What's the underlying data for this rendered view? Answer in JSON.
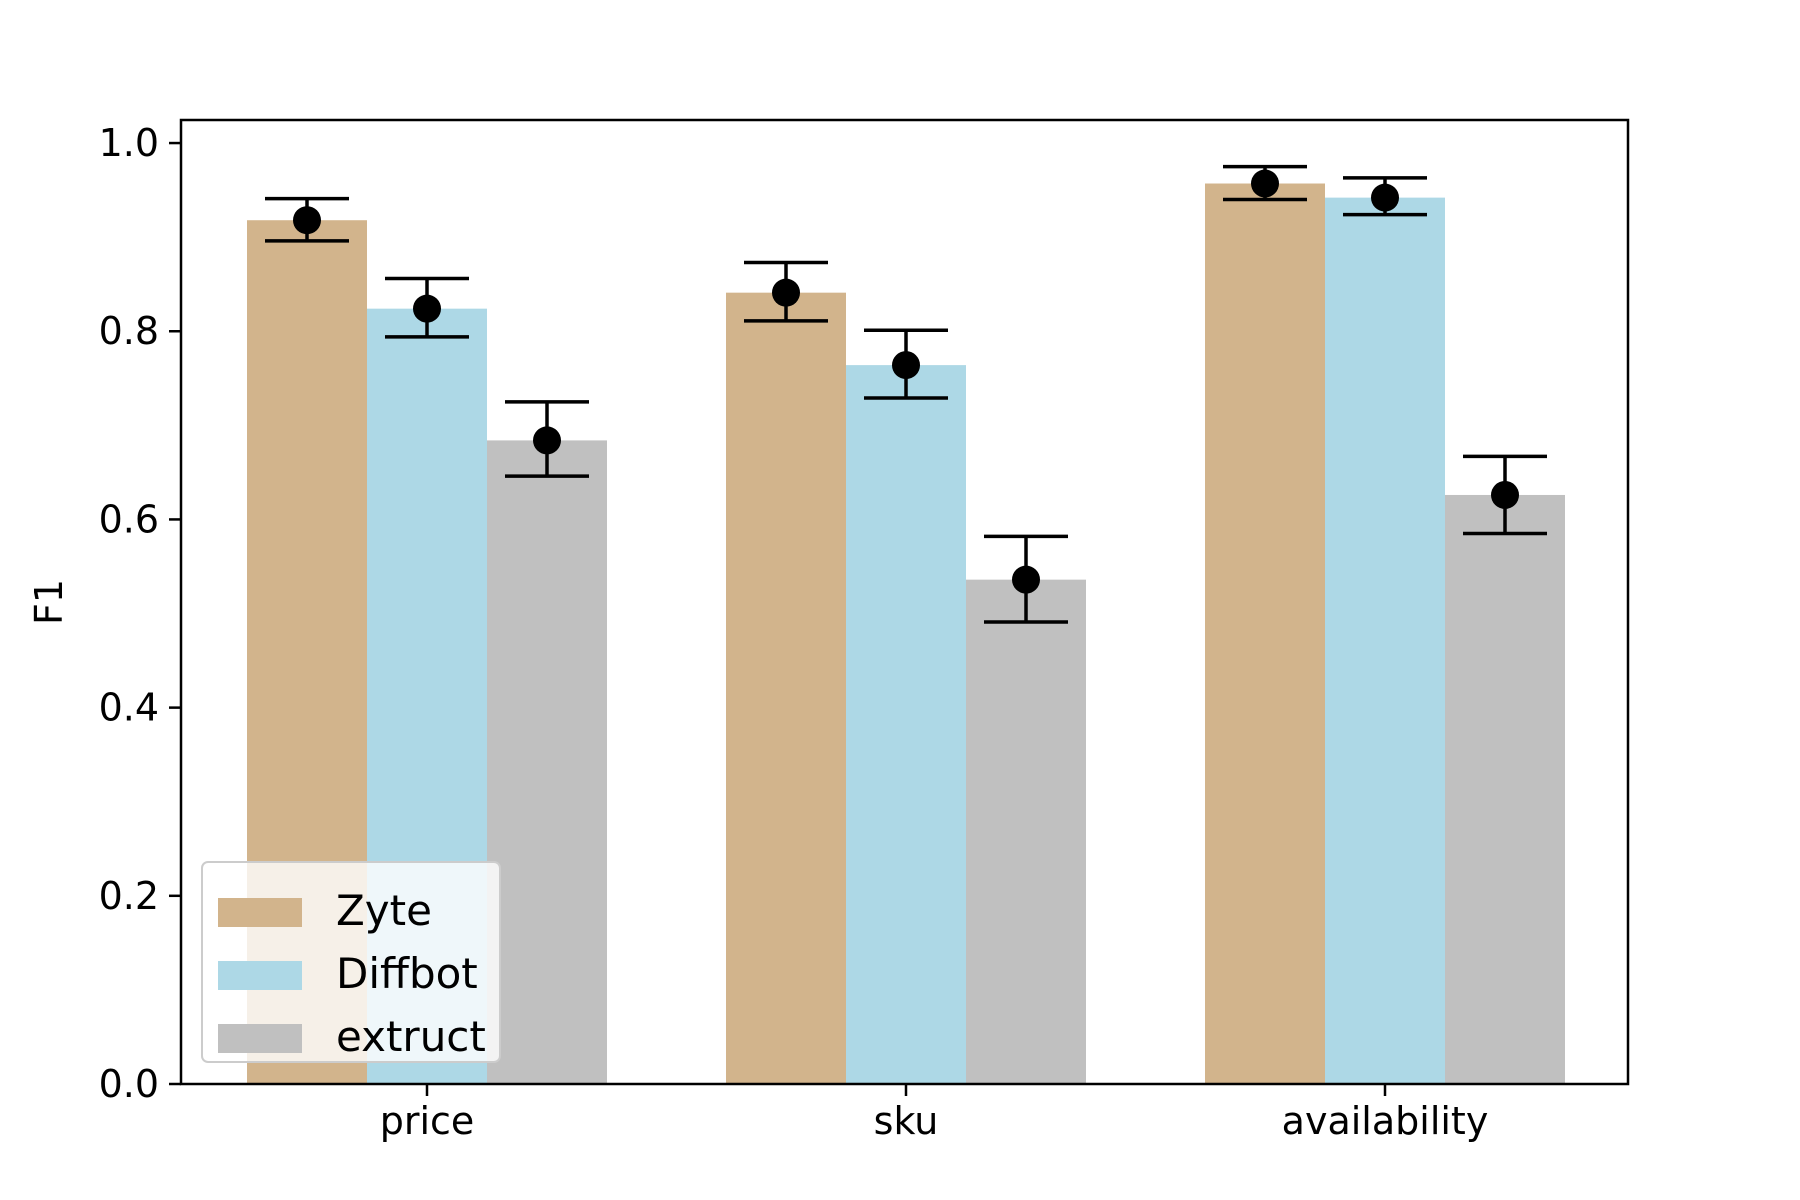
{
  "chart_data": {
    "type": "bar",
    "title": "",
    "xlabel": "",
    "ylabel": "F1",
    "ylim": [
      0,
      1.0
    ],
    "yticks": [
      "0.0",
      "0.2",
      "0.4",
      "0.6",
      "0.8",
      "1.0"
    ],
    "categories": [
      "price",
      "sku",
      "availability"
    ],
    "grid": false,
    "legend_position": "lower-left",
    "series": [
      {
        "name": "Zyte",
        "color": "#d2b48c",
        "values": [
          0.918,
          0.841,
          0.957
        ],
        "err_low": [
          0.896,
          0.811,
          0.94
        ],
        "err_high": [
          0.941,
          0.873,
          0.975
        ]
      },
      {
        "name": "Diffbot",
        "color": "#add8e6",
        "values": [
          0.824,
          0.764,
          0.942
        ],
        "err_low": [
          0.794,
          0.729,
          0.924
        ],
        "err_high": [
          0.856,
          0.801,
          0.963
        ]
      },
      {
        "name": "extruct",
        "color": "#c0c0c0",
        "values": [
          0.684,
          0.536,
          0.626
        ],
        "err_low": [
          0.646,
          0.491,
          0.585
        ],
        "err_high": [
          0.725,
          0.582,
          0.667
        ]
      }
    ]
  }
}
